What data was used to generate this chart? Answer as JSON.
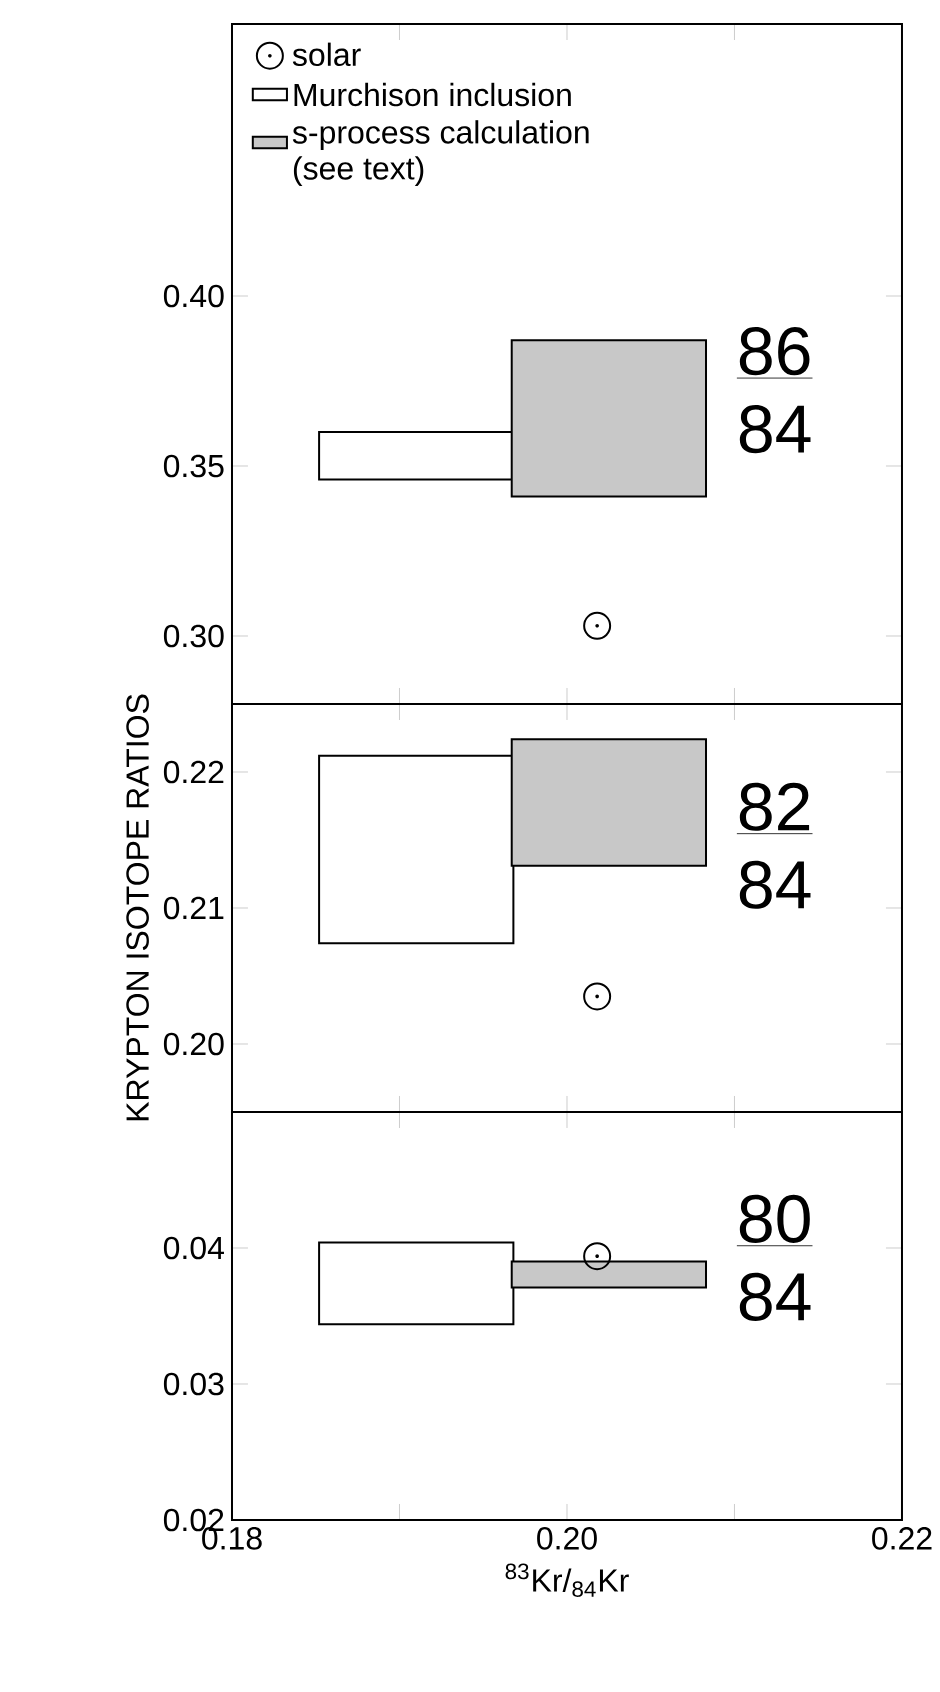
{
  "chart_data": [
    {
      "type": "scatter",
      "legend": "top left",
      "tick_labels": "y",
      "xlim": [
        0.18,
        0.22
      ],
      "ylim": [
        0.28,
        0.48
      ],
      "xticks": [
        {
          "value": 0.18,
          "label": null
        },
        {
          "value": 0.19,
          "label": null
        },
        {
          "value": 0.2,
          "label": null
        },
        {
          "value": 0.21,
          "label": null
        },
        {
          "value": 0.22,
          "label": null
        }
      ],
      "yticks": [
        {
          "value": 0.3,
          "label": "0.30"
        },
        {
          "value": 0.35,
          "label": "0.35"
        },
        {
          "value": 0.4,
          "label": "0.40"
        }
      ],
      "annotations": [
        "86",
        "84"
      ],
      "series": [
        {
          "name": "solar",
          "marker": "circle",
          "color": "#000000",
          "x": [
            0.2018
          ],
          "values": [
            0.303
          ]
        },
        {
          "name": "Murchison inclusion",
          "type": "bar",
          "color": "#ffffff",
          "x": [
            0.191
          ],
          "base": [
            0.346
          ],
          "values": [
            0.014
          ]
        },
        {
          "name": "s-process calculation (see text)",
          "type": "bar",
          "color": "#c8c8c8",
          "x": [
            0.2025
          ],
          "base": [
            0.341
          ],
          "values": [
            0.046
          ]
        }
      ]
    },
    {
      "type": "scatter",
      "tick_labels": "y",
      "ylabel": "KRYPTON ISOTOPE RATIOS",
      "xlim": [
        0.18,
        0.22
      ],
      "ylim": [
        0.195,
        0.225
      ],
      "xticks": [
        {
          "value": 0.18,
          "label": null
        },
        {
          "value": 0.19,
          "label": null
        },
        {
          "value": 0.2,
          "label": null
        },
        {
          "value": 0.21,
          "label": null
        },
        {
          "value": 0.22,
          "label": null
        }
      ],
      "yticks": [
        {
          "value": 0.2,
          "label": "0.20"
        },
        {
          "value": 0.21,
          "label": "0.21"
        },
        {
          "value": 0.22,
          "label": "0.22"
        }
      ],
      "annotations": [
        "82",
        "84"
      ],
      "series": [
        {
          "marker": "circle",
          "color": "#000000",
          "x": [
            0.2018
          ],
          "values": [
            0.2035
          ]
        },
        {
          "type": "bar",
          "color": "#ffffff",
          "x": [
            0.191
          ],
          "base": [
            0.2074
          ],
          "values": [
            0.0138
          ]
        },
        {
          "type": "bar",
          "color": "#c8c8c8",
          "x": [
            0.2025
          ],
          "base": [
            0.2131
          ],
          "values": [
            0.0093
          ]
        }
      ]
    },
    {
      "type": "scatter",
      "xlabel": "$^{83}$Kr/$_{84}$Kr",
      "xlim": [
        0.18,
        0.22
      ],
      "ylim": [
        0.02,
        0.05
      ],
      "xticks": [
        {
          "value": 0.18,
          "label": "0.18"
        },
        {
          "value": 0.19,
          "label": null
        },
        {
          "value": 0.2,
          "label": "0.20"
        },
        {
          "value": 0.21,
          "label": null
        },
        {
          "value": 0.22,
          "label": "0.22"
        }
      ],
      "yticks": [
        {
          "value": 0.02,
          "label": "0.02"
        },
        {
          "value": 0.03,
          "label": "0.03"
        },
        {
          "value": 0.04,
          "label": "0.04"
        }
      ],
      "annotations": [
        "80",
        "84"
      ],
      "series": [
        {
          "marker": "circle",
          "color": "#000000",
          "x": [
            0.2018
          ],
          "values": [
            0.0394
          ]
        },
        {
          "type": "bar",
          "color": "#ffffff",
          "x": [
            0.191
          ],
          "base": [
            0.0344
          ],
          "values": [
            0.006
          ]
        },
        {
          "type": "bar",
          "color": "#c8c8c8",
          "x": [
            0.2025
          ],
          "base": [
            0.0371
          ],
          "values": [
            0.0019
          ]
        }
      ]
    }
  ]
}
